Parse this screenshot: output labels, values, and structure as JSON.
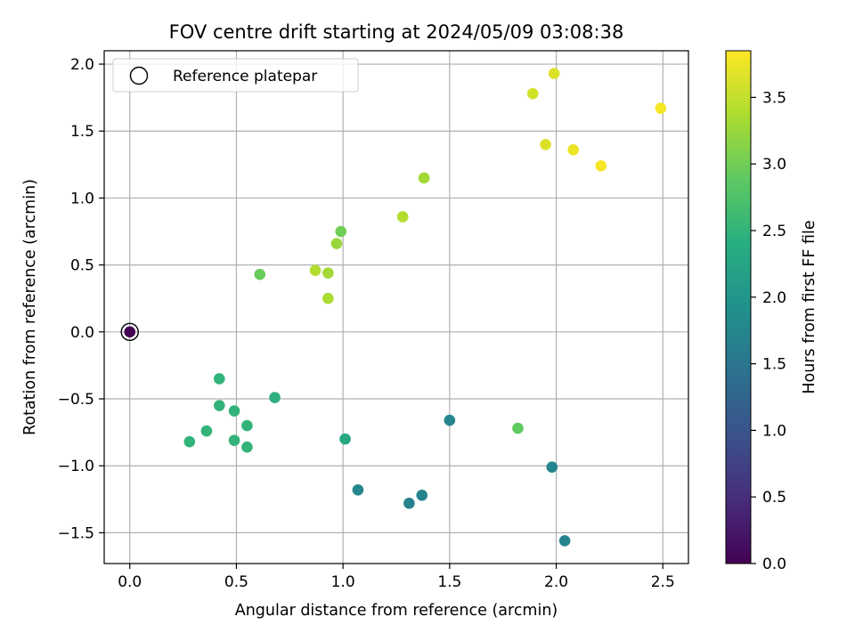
{
  "chart_data": {
    "type": "scatter",
    "title": "FOV centre drift starting at 2024/05/09 03:08:38",
    "xlabel": "Angular distance from reference (arcmin)",
    "ylabel": "Rotation from reference (arcmin)",
    "xlim": [
      -0.12,
      2.62
    ],
    "ylim": [
      -1.73,
      2.1
    ],
    "xticks": [
      0.0,
      0.5,
      1.0,
      1.5,
      2.0,
      2.5
    ],
    "yticks": [
      -1.5,
      -1.0,
      -0.5,
      0.0,
      0.5,
      1.0,
      1.5,
      2.0
    ],
    "xtick_labels": [
      "0.0",
      "0.5",
      "1.0",
      "1.5",
      "2.0",
      "2.5"
    ],
    "ytick_labels": [
      "−1.5",
      "−1.0",
      "−0.5",
      "0.0",
      "0.5",
      "1.0",
      "1.5",
      "2.0"
    ],
    "grid": true,
    "colormap": "viridis",
    "colorbar": {
      "label": "Hours from first FF file",
      "range": [
        0.0,
        3.85
      ],
      "ticks": [
        0.0,
        0.5,
        1.0,
        1.5,
        2.0,
        2.5,
        3.0,
        3.5
      ],
      "tick_labels": [
        "0.0",
        "0.5",
        "1.0",
        "1.5",
        "2.0",
        "2.5",
        "3.0",
        "3.5"
      ]
    },
    "legend": {
      "placement": "top-left",
      "entries": [
        "Reference platepar"
      ]
    },
    "reference_point": {
      "x": 0.0,
      "y": 0.0
    },
    "points": [
      {
        "x": 0.0,
        "y": 0.0,
        "hours": 0.0
      },
      {
        "x": 1.07,
        "y": -1.18,
        "hours": 1.75
      },
      {
        "x": 1.31,
        "y": -1.28,
        "hours": 1.7
      },
      {
        "x": 1.37,
        "y": -1.22,
        "hours": 1.7
      },
      {
        "x": 1.5,
        "y": -0.66,
        "hours": 1.75
      },
      {
        "x": 1.98,
        "y": -1.01,
        "hours": 1.75
      },
      {
        "x": 2.04,
        "y": -1.56,
        "hours": 1.7
      },
      {
        "x": 1.01,
        "y": -0.8,
        "hours": 2.3
      },
      {
        "x": 0.68,
        "y": -0.49,
        "hours": 2.45
      },
      {
        "x": 0.42,
        "y": -0.35,
        "hours": 2.5
      },
      {
        "x": 0.42,
        "y": -0.55,
        "hours": 2.5
      },
      {
        "x": 0.49,
        "y": -0.59,
        "hours": 2.5
      },
      {
        "x": 0.55,
        "y": -0.7,
        "hours": 2.5
      },
      {
        "x": 0.36,
        "y": -0.74,
        "hours": 2.5
      },
      {
        "x": 0.28,
        "y": -0.82,
        "hours": 2.5
      },
      {
        "x": 0.49,
        "y": -0.81,
        "hours": 2.5
      },
      {
        "x": 0.55,
        "y": -0.86,
        "hours": 2.5
      },
      {
        "x": 1.82,
        "y": -0.72,
        "hours": 2.9
      },
      {
        "x": 0.61,
        "y": 0.43,
        "hours": 2.95
      },
      {
        "x": 0.99,
        "y": 0.75,
        "hours": 3.0
      },
      {
        "x": 0.97,
        "y": 0.66,
        "hours": 3.25
      },
      {
        "x": 0.87,
        "y": 0.46,
        "hours": 3.4
      },
      {
        "x": 0.93,
        "y": 0.44,
        "hours": 3.3
      },
      {
        "x": 0.93,
        "y": 0.25,
        "hours": 3.35
      },
      {
        "x": 1.28,
        "y": 0.86,
        "hours": 3.4
      },
      {
        "x": 1.38,
        "y": 1.15,
        "hours": 3.3
      },
      {
        "x": 1.89,
        "y": 1.78,
        "hours": 3.6
      },
      {
        "x": 1.99,
        "y": 1.93,
        "hours": 3.65
      },
      {
        "x": 1.95,
        "y": 1.4,
        "hours": 3.65
      },
      {
        "x": 2.08,
        "y": 1.36,
        "hours": 3.75
      },
      {
        "x": 2.21,
        "y": 1.24,
        "hours": 3.8
      },
      {
        "x": 2.49,
        "y": 1.67,
        "hours": 3.8
      }
    ]
  }
}
